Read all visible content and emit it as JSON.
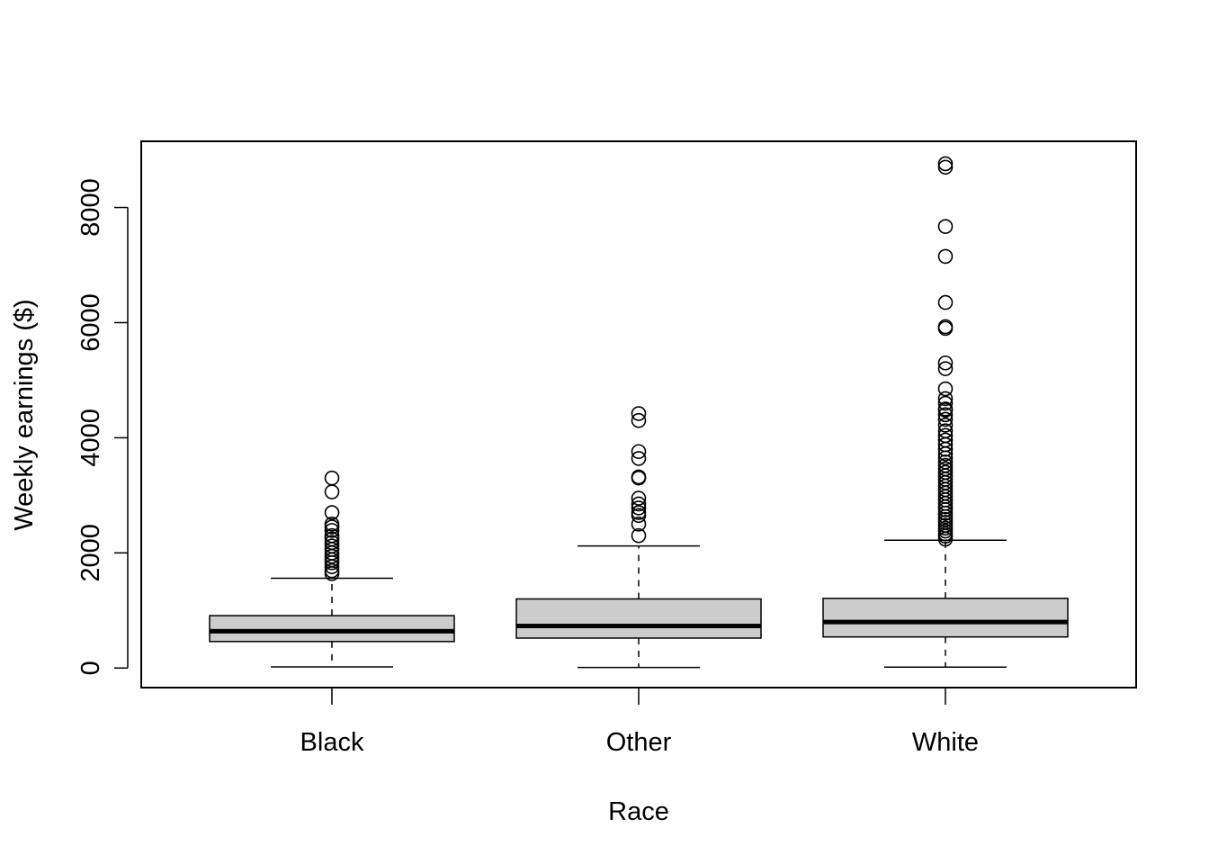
{
  "chart_data": {
    "type": "box",
    "title": "",
    "xlabel": "Race",
    "ylabel": "Weekly earnings ($)",
    "ylim": [
      -340,
      9150
    ],
    "yticks": [
      0,
      2000,
      4000,
      6000,
      8000
    ],
    "categories": [
      "Black",
      "Other",
      "White"
    ],
    "box_fill": "#cccccc",
    "boxes": [
      {
        "name": "Black",
        "whisker_low": 20,
        "q1": 460,
        "median": 640,
        "q3": 910,
        "whisker_high": 1560,
        "outliers": [
          1640,
          1690,
          1760,
          1830,
          1880,
          1940,
          2000,
          2060,
          2120,
          2180,
          2240,
          2300,
          2390,
          2450,
          2500,
          2700,
          3060,
          3300
        ]
      },
      {
        "name": "Other",
        "whisker_low": 10,
        "q1": 520,
        "median": 730,
        "q3": 1200,
        "whisker_high": 2120,
        "outliers": [
          2300,
          2500,
          2650,
          2700,
          2780,
          2850,
          2950,
          3300,
          3320,
          3640,
          3760,
          4300,
          4420
        ]
      },
      {
        "name": "White",
        "whisker_low": 15,
        "q1": 540,
        "median": 800,
        "q3": 1210,
        "whisker_high": 2220,
        "outliers": [
          2240,
          2290,
          2330,
          2380,
          2430,
          2480,
          2530,
          2580,
          2630,
          2690,
          2750,
          2800,
          2860,
          2920,
          2980,
          3040,
          3100,
          3160,
          3220,
          3280,
          3340,
          3400,
          3460,
          3520,
          3580,
          3650,
          3720,
          3800,
          3880,
          3960,
          4040,
          4120,
          4220,
          4320,
          4400,
          4480,
          4500,
          4600,
          4680,
          4850,
          5200,
          5300,
          5900,
          5930,
          6350,
          7150,
          7670,
          8700,
          8760
        ]
      }
    ]
  }
}
